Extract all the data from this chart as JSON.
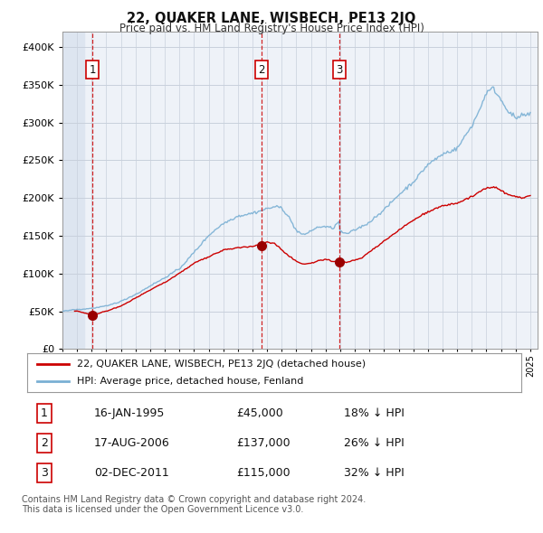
{
  "title": "22, QUAKER LANE, WISBECH, PE13 2JQ",
  "subtitle": "Price paid vs. HM Land Registry's House Price Index (HPI)",
  "ylim": [
    0,
    420000
  ],
  "yticks": [
    0,
    50000,
    100000,
    150000,
    200000,
    250000,
    300000,
    350000,
    400000
  ],
  "ytick_labels": [
    "£0",
    "£50K",
    "£100K",
    "£150K",
    "£200K",
    "£250K",
    "£300K",
    "£350K",
    "£400K"
  ],
  "hpi_color": "#7ab0d4",
  "price_color": "#cc0000",
  "sale_marker_color": "#990000",
  "background_color": "#ffffff",
  "plot_bg_color": "#eef2f8",
  "grid_color": "#c8d0dc",
  "sales": [
    {
      "year_float": 1995.04,
      "price": 45000,
      "label": "1"
    },
    {
      "year_float": 2006.63,
      "price": 137000,
      "label": "2"
    },
    {
      "year_float": 2011.92,
      "price": 115000,
      "label": "3"
    }
  ],
  "legend_entries": [
    "22, QUAKER LANE, WISBECH, PE13 2JQ (detached house)",
    "HPI: Average price, detached house, Fenland"
  ],
  "table_rows": [
    [
      "1",
      "16-JAN-1995",
      "£45,000",
      "18% ↓ HPI"
    ],
    [
      "2",
      "17-AUG-2006",
      "£137,000",
      "26% ↓ HPI"
    ],
    [
      "3",
      "02-DEC-2011",
      "£115,000",
      "32% ↓ HPI"
    ]
  ],
  "footnote1": "Contains HM Land Registry data © Crown copyright and database right 2024.",
  "footnote2": "This data is licensed under the Open Government Licence v3.0."
}
